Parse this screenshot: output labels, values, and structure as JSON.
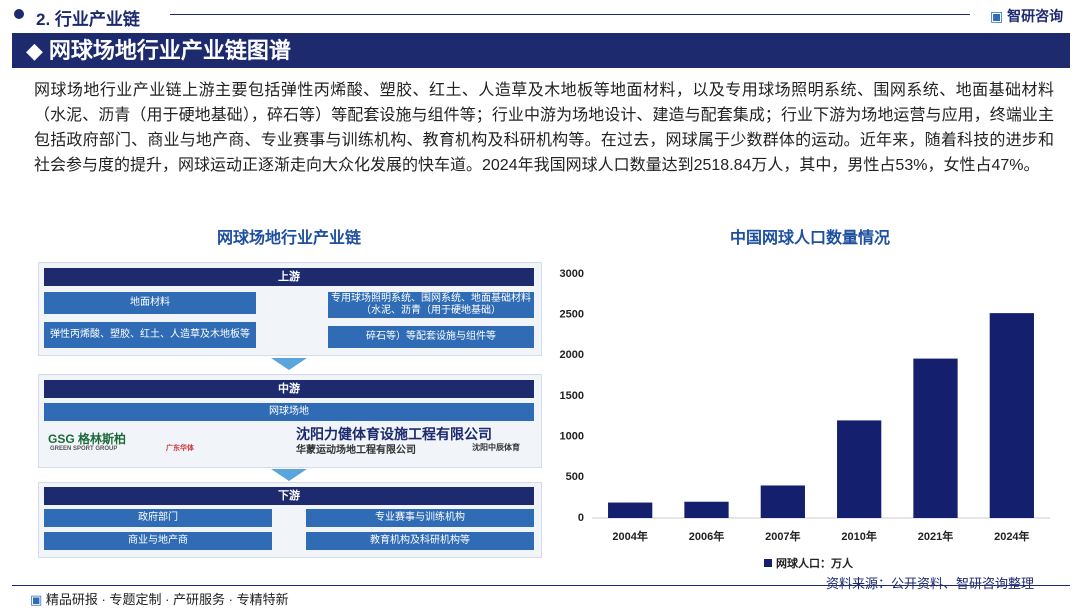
{
  "header": {
    "section": "2. 行业产业链",
    "brand": "智研咨询"
  },
  "title": "网球场地行业产业链图谱",
  "paragraph": "网球场地行业产业链上游主要包括弹性丙烯酸、塑胶、红土、人造草及木地板等地面材料，以及专用球场照明系统、围网系统、地面基础材料（水泥、沥青（用于硬地基础），碎石等）等配套设施与组件等；行业中游为场地设计、建造与配套集成；行业下游为场地运营与应用，终端业主包括政府部门、商业与地产商、专业赛事与训练机构、教育机构及科研机构等。在过去，网球属于少数群体的运动。近年来，随着科技的进步和社会参与度的提升，网球运动正逐渐走向大众化发展的快车道。2024年我国网球人口数量达到2518.84万人，其中，男性占53%，女性占47%。",
  "diagram": {
    "title": "网球场地行业产业链",
    "upstream": {
      "label": "上游",
      "items": [
        "地面材料",
        "专用球场照明系统、围网系统、地面基础材料（水泥、沥青（用于硬地基础）",
        "弹性丙烯酸、塑胶、红土、人造草及木地板等",
        "碎石等）等配套设施与组件等"
      ]
    },
    "midstream": {
      "label": "中游",
      "items": [
        "网球场地"
      ],
      "companies": [
        "GSG 格林斯柏",
        "GREEN SPORT GROUP",
        "广东华体",
        "沈阳力健体育设施工程有限公司",
        "华蒙运动场地工程有限公司",
        "沈阳中辰体育"
      ]
    },
    "downstream": {
      "label": "下游",
      "items": [
        "政府部门",
        "专业赛事与训练机构",
        "商业与地产商",
        "教育机构及科研机构等"
      ]
    }
  },
  "chart_data": {
    "type": "bar",
    "title": "中国网球人口数量情况",
    "categories": [
      "2004年",
      "2006年",
      "2007年",
      "2010年",
      "2021年",
      "2024年"
    ],
    "series": [
      {
        "name": "网球人口：万人",
        "color": "#14206e",
        "values": [
          190,
          200,
          400,
          1200,
          1960,
          2518.84
        ]
      }
    ],
    "ylim": [
      0,
      3000
    ],
    "yticks": [
      0,
      500,
      1000,
      1500,
      2000,
      2500,
      3000
    ],
    "grid": false
  },
  "source": "资料来源：公开资料、智研咨询整理",
  "footer": "精品研报 · 专题定制 · 产研服务 · 专精特新"
}
